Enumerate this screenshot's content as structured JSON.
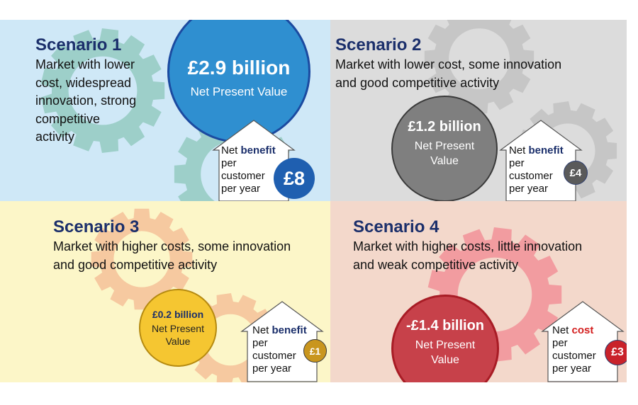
{
  "colors": {
    "title": "#1b2f6b",
    "benefit": "#1b2f6b",
    "cost": "#d42020",
    "q1_bg": "#cfe8f7",
    "q2_bg": "#dcdcdc",
    "q3_bg": "#fcf6c8",
    "q4_bg": "#f3d8cb",
    "q1_gear": "#9dcfc9",
    "q2_gear": "#c6c6c6",
    "q3_gear": "#f6c9a0",
    "q4_gear": "#f29ca0",
    "q1_circle": "#2f8fd0",
    "q2_circle": "#7f7f7f",
    "q3_circle": "#f5c631",
    "q4_circle": "#c7414a"
  },
  "scenarios": [
    {
      "title": "Scenario 1",
      "description_lines": [
        "Market with lower",
        "cost, widespread",
        "innovation, strong",
        "competitive",
        "activity"
      ],
      "npv_value": "£2.9 billion",
      "npv_label": "Net Present Value",
      "house_word1": "Net",
      "house_keyword": "benefit",
      "house_lines": [
        "per",
        "customer",
        "per year"
      ],
      "badge": "£8",
      "badge_color": "#1f5fb0"
    },
    {
      "title": "Scenario 2",
      "description_lines": [
        "Market with lower cost, some innovation",
        "and good competitive activity"
      ],
      "npv_value": "£1.2 billion",
      "npv_label_lines": [
        "Net Present",
        "Value"
      ],
      "house_word1": "Net",
      "house_keyword": "benefit",
      "house_lines": [
        "per",
        "customer",
        "per year"
      ],
      "badge": "£4",
      "badge_color": "#5a5a5a"
    },
    {
      "title": "Scenario 3",
      "description_lines": [
        "Market with higher costs, some innovation",
        "and good competitive activity"
      ],
      "npv_value": "£0.2 billion",
      "npv_label_lines": [
        "Net Present",
        "Value"
      ],
      "house_word1": "Net",
      "house_keyword": "benefit",
      "house_lines": [
        "per",
        "customer",
        "per year"
      ],
      "badge": "£1",
      "badge_color": "#c9961e"
    },
    {
      "title": "Scenario 4",
      "description_lines": [
        "Market with higher costs, little innovation",
        "and weak competitive activity"
      ],
      "npv_value": "-£1.4 billion",
      "npv_label_lines": [
        "Net Present",
        "Value"
      ],
      "house_word1": "Net",
      "house_keyword": "cost",
      "house_lines": [
        "per",
        "customer",
        "per year"
      ],
      "badge": "£3",
      "badge_color": "#c9222a"
    }
  ]
}
